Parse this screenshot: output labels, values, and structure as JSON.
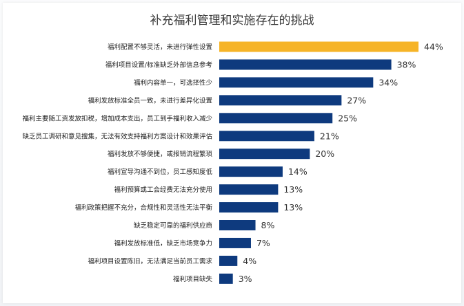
{
  "chart_data": {
    "type": "bar",
    "orientation": "horizontal",
    "title": "补充福利管理和实施存在的挑战",
    "categories": [
      "福利配置不够灵活，未进行弹性设置",
      "福利项目设置/标准缺乏外部信息参考",
      "福利内容单一，可选择性少",
      "福利发放标准全员一致，未进行差异化设置",
      "福利主要随工资发放扣税，增加成本支出，员工到手福利收入减少",
      "缺乏员工调研和意见搜集，无法有效支持福利方案设计和效果评估",
      "福利发放不够便捷，或报销流程繁琐",
      "福利宣导沟通不到位，员工感知度低",
      "福利预算或工会经费无法充分使用",
      "福利政策把握不充分，合规性和灵活性无法平衡",
      "缺乏稳定可靠的福利供应商",
      "福利发放标准低，缺乏市场竞争力",
      "福利项目设置陈旧，无法满足当前员工需求",
      "福利项目缺失"
    ],
    "values": [
      44,
      38,
      34,
      27,
      25,
      21,
      20,
      14,
      13,
      13,
      8,
      7,
      4,
      3
    ],
    "value_labels": [
      "44%",
      "38%",
      "34%",
      "27%",
      "25%",
      "21%",
      "20%",
      "14%",
      "13%",
      "13%",
      "8%",
      "7%",
      "4%",
      "3%"
    ],
    "unit": "%",
    "xlim": [
      0,
      44
    ],
    "highlight_index": 0,
    "colors": {
      "bar": "#0e3a7e",
      "highlight": "#f6b427"
    },
    "grid": false,
    "legend": "none"
  }
}
